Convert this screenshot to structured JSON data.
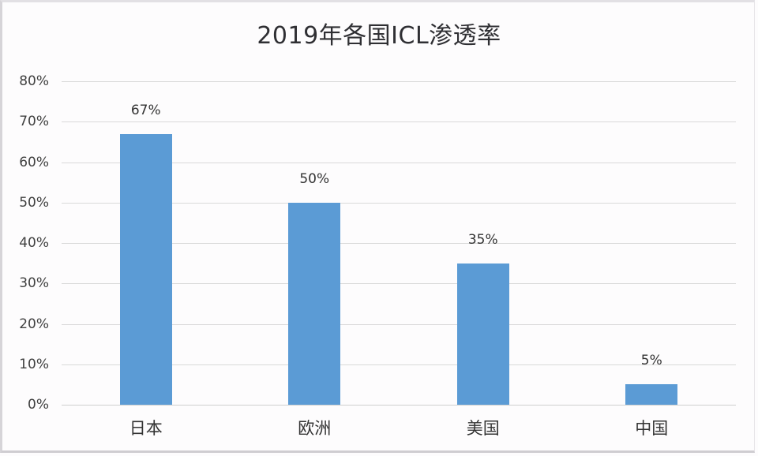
{
  "chart_data": {
    "type": "bar",
    "title": "2019年各国ICL渗透率",
    "categories": [
      "日本",
      "欧洲",
      "美国",
      "中国"
    ],
    "values": [
      67,
      50,
      35,
      5
    ],
    "data_labels": [
      "67%",
      "50%",
      "35%",
      "5%"
    ],
    "xlabel": "",
    "ylabel": "",
    "ylim": [
      0,
      80
    ],
    "yticks": [
      "0%",
      "10%",
      "20%",
      "30%",
      "40%",
      "50%",
      "60%",
      "70%",
      "80%"
    ],
    "grid": true,
    "legend": null,
    "bar_color": "#5b9bd5"
  }
}
